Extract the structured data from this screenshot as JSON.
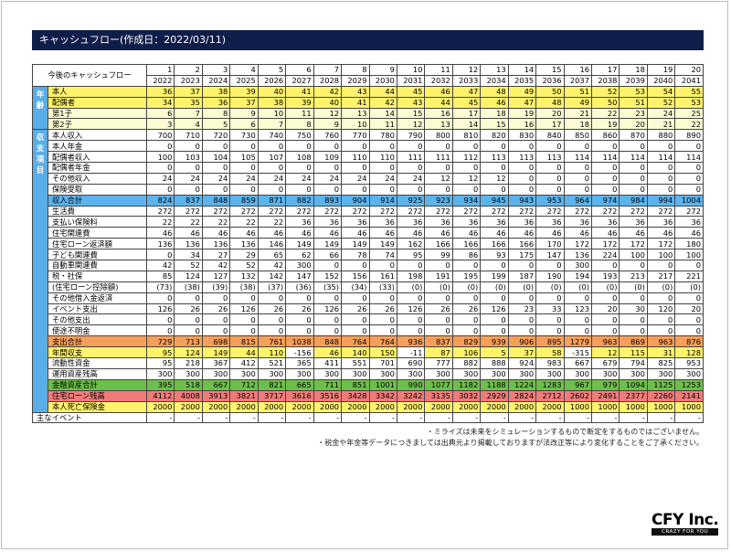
{
  "title": "キャッシュフロー(作成日：2022/03/11)",
  "table": {
    "corner_label": "今後のキャッシュフロー",
    "group_age": "年齢",
    "group_items": "収支項目",
    "periods": [
      "1",
      "2",
      "3",
      "4",
      "5",
      "6",
      "7",
      "8",
      "9",
      "10",
      "11",
      "12",
      "13",
      "14",
      "15",
      "16",
      "17",
      "18",
      "19",
      "20"
    ],
    "years": [
      "2022",
      "2023",
      "2024",
      "2025",
      "2026",
      "2027",
      "2028",
      "2029",
      "2030",
      "2031",
      "2032",
      "2033",
      "2034",
      "2035",
      "2036",
      "2037",
      "2038",
      "2039",
      "2040",
      "2041"
    ],
    "age_rows": [
      {
        "label": "本人",
        "style": "y",
        "values": [
          "36",
          "37",
          "38",
          "39",
          "40",
          "41",
          "42",
          "43",
          "44",
          "45",
          "46",
          "47",
          "48",
          "49",
          "50",
          "51",
          "52",
          "53",
          "54",
          "55"
        ]
      },
      {
        "label": "配偶者",
        "style": "y",
        "values": [
          "34",
          "35",
          "36",
          "37",
          "38",
          "39",
          "40",
          "41",
          "42",
          "43",
          "44",
          "45",
          "46",
          "47",
          "48",
          "49",
          "50",
          "51",
          "52",
          "53"
        ]
      },
      {
        "label": "第1子",
        "style": "ly",
        "values": [
          "6",
          "7",
          "8",
          "9",
          "10",
          "11",
          "12",
          "13",
          "14",
          "15",
          "16",
          "17",
          "18",
          "19",
          "20",
          "21",
          "22",
          "23",
          "24",
          "25"
        ]
      },
      {
        "label": "第2子",
        "style": "ly",
        "values": [
          "3",
          "4",
          "5",
          "6",
          "7",
          "8",
          "9",
          "10",
          "11",
          "12",
          "13",
          "14",
          "15",
          "16",
          "17",
          "18",
          "19",
          "20",
          "21",
          "22"
        ]
      }
    ],
    "item_rows": [
      {
        "label": "本人収入",
        "style": "w",
        "values": [
          "700",
          "710",
          "720",
          "730",
          "740",
          "750",
          "760",
          "770",
          "780",
          "790",
          "800",
          "810",
          "820",
          "830",
          "840",
          "850",
          "860",
          "870",
          "880",
          "890"
        ]
      },
      {
        "label": "本人年金",
        "style": "w",
        "values": [
          "0",
          "0",
          "0",
          "0",
          "0",
          "0",
          "0",
          "0",
          "0",
          "0",
          "0",
          "0",
          "0",
          "0",
          "0",
          "0",
          "0",
          "0",
          "0",
          "0"
        ]
      },
      {
        "label": "配偶者収入",
        "style": "w",
        "values": [
          "100",
          "103",
          "104",
          "105",
          "107",
          "108",
          "109",
          "110",
          "110",
          "111",
          "111",
          "112",
          "113",
          "113",
          "113",
          "114",
          "114",
          "114",
          "114",
          "114"
        ]
      },
      {
        "label": "配偶者年金",
        "style": "w",
        "values": [
          "0",
          "0",
          "0",
          "0",
          "0",
          "0",
          "0",
          "0",
          "0",
          "0",
          "0",
          "0",
          "0",
          "0",
          "0",
          "0",
          "0",
          "0",
          "0",
          "0"
        ]
      },
      {
        "label": "その他収入",
        "style": "w",
        "values": [
          "24",
          "24",
          "24",
          "24",
          "24",
          "24",
          "24",
          "24",
          "24",
          "24",
          "12",
          "12",
          "12",
          "0",
          "0",
          "0",
          "0",
          "0",
          "0",
          "0"
        ]
      },
      {
        "label": "保険受取",
        "style": "w",
        "values": [
          "0",
          "0",
          "0",
          "0",
          "0",
          "0",
          "0",
          "0",
          "0",
          "0",
          "0",
          "0",
          "0",
          "0",
          "0",
          "0",
          "0",
          "0",
          "0",
          "0"
        ]
      },
      {
        "label": "収入合計",
        "style": "b",
        "values": [
          "824",
          "837",
          "848",
          "859",
          "871",
          "882",
          "893",
          "904",
          "914",
          "925",
          "923",
          "934",
          "945",
          "943",
          "953",
          "964",
          "974",
          "984",
          "994",
          "1004"
        ]
      },
      {
        "label": "生活費",
        "style": "w",
        "values": [
          "272",
          "272",
          "272",
          "272",
          "272",
          "272",
          "272",
          "272",
          "272",
          "272",
          "272",
          "272",
          "272",
          "272",
          "272",
          "272",
          "272",
          "272",
          "272",
          "272"
        ]
      },
      {
        "label": "支払い保険料",
        "style": "w",
        "values": [
          "22",
          "22",
          "22",
          "22",
          "22",
          "36",
          "36",
          "36",
          "36",
          "36",
          "36",
          "36",
          "36",
          "36",
          "36",
          "36",
          "36",
          "36",
          "36",
          "36"
        ]
      },
      {
        "label": "住宅関連費",
        "style": "w",
        "values": [
          "46",
          "46",
          "46",
          "46",
          "46",
          "46",
          "46",
          "46",
          "46",
          "46",
          "46",
          "46",
          "46",
          "46",
          "46",
          "46",
          "46",
          "46",
          "46",
          "46"
        ]
      },
      {
        "label": "住宅ローン返済額",
        "style": "w",
        "values": [
          "136",
          "136",
          "136",
          "136",
          "146",
          "149",
          "149",
          "149",
          "149",
          "162",
          "166",
          "166",
          "166",
          "166",
          "170",
          "172",
          "172",
          "172",
          "172",
          "180"
        ]
      },
      {
        "label": "子ども関連費",
        "style": "w",
        "values": [
          "0",
          "34",
          "27",
          "29",
          "65",
          "62",
          "66",
          "78",
          "74",
          "95",
          "99",
          "86",
          "93",
          "175",
          "147",
          "136",
          "224",
          "100",
          "100",
          "100"
        ]
      },
      {
        "label": "自動車関連費",
        "style": "w",
        "values": [
          "42",
          "52",
          "42",
          "52",
          "42",
          "300",
          "0",
          "0",
          "0",
          "0",
          "0",
          "0",
          "0",
          "0",
          "0",
          "300",
          "0",
          "0",
          "0",
          "0"
        ]
      },
      {
        "label": "税・社保",
        "style": "w",
        "values": [
          "85",
          "124",
          "127",
          "132",
          "142",
          "147",
          "152",
          "156",
          "161",
          "198",
          "191",
          "195",
          "199",
          "187",
          "190",
          "194",
          "193",
          "213",
          "217",
          "221"
        ]
      },
      {
        "label": "(住宅ローン控除額)",
        "style": "w",
        "values": [
          "(73)",
          "(38)",
          "(39)",
          "(38)",
          "(37)",
          "(36)",
          "(35)",
          "(34)",
          "(33)",
          "(0)",
          "(0)",
          "(0)",
          "(0)",
          "(0)",
          "(0)",
          "(0)",
          "(0)",
          "(0)",
          "(0)",
          "(0)"
        ]
      },
      {
        "label": "その他借入金返済",
        "style": "w",
        "values": [
          "0",
          "0",
          "0",
          "0",
          "0",
          "0",
          "0",
          "0",
          "0",
          "0",
          "0",
          "0",
          "0",
          "0",
          "0",
          "0",
          "0",
          "0",
          "0",
          "0"
        ]
      },
      {
        "label": "イベント支出",
        "style": "w",
        "values": [
          "126",
          "26",
          "26",
          "126",
          "26",
          "26",
          "126",
          "26",
          "26",
          "126",
          "26",
          "26",
          "126",
          "23",
          "33",
          "123",
          "20",
          "30",
          "120",
          "20"
        ]
      },
      {
        "label": "その他支出",
        "style": "w",
        "values": [
          "0",
          "0",
          "0",
          "0",
          "0",
          "0",
          "0",
          "0",
          "0",
          "0",
          "0",
          "0",
          "0",
          "0",
          "0",
          "0",
          "0",
          "0",
          "0",
          "0"
        ]
      },
      {
        "label": "使途不明金",
        "style": "w",
        "values": [
          "0",
          "0",
          "0",
          "0",
          "0",
          "0",
          "0",
          "0",
          "0",
          "0",
          "0",
          "0",
          "0",
          "0",
          "0",
          "0",
          "0",
          "0",
          "0",
          "0"
        ]
      },
      {
        "label": "支出合計",
        "style": "o",
        "values": [
          "729",
          "713",
          "698",
          "815",
          "761",
          "1038",
          "848",
          "764",
          "764",
          "936",
          "837",
          "829",
          "939",
          "906",
          "895",
          "1279",
          "963",
          "869",
          "963",
          "876"
        ]
      },
      {
        "label": "年間収支",
        "style": "y",
        "negative_white": true,
        "values": [
          "95",
          "124",
          "149",
          "44",
          "110",
          "-156",
          "46",
          "140",
          "150",
          "-11",
          "87",
          "106",
          "5",
          "37",
          "58",
          "-315",
          "12",
          "115",
          "31",
          "128"
        ]
      },
      {
        "label": "流動性資金",
        "style": "w",
        "values": [
          "95",
          "218",
          "367",
          "412",
          "521",
          "365",
          "411",
          "551",
          "701",
          "690",
          "777",
          "882",
          "888",
          "924",
          "983",
          "667",
          "679",
          "794",
          "825",
          "953"
        ]
      },
      {
        "label": "運用資産残高",
        "style": "w",
        "values": [
          "300",
          "300",
          "300",
          "300",
          "300",
          "300",
          "300",
          "300",
          "300",
          "300",
          "300",
          "300",
          "300",
          "300",
          "300",
          "300",
          "300",
          "300",
          "300",
          "300"
        ]
      },
      {
        "label": "金融資産合計",
        "style": "g",
        "values": [
          "395",
          "518",
          "667",
          "712",
          "821",
          "665",
          "711",
          "851",
          "1001",
          "990",
          "1077",
          "1182",
          "1188",
          "1224",
          "1283",
          "967",
          "979",
          "1094",
          "1125",
          "1253"
        ]
      },
      {
        "label": "住宅ローン残高",
        "style": "r",
        "values": [
          "4112",
          "4008",
          "3913",
          "3821",
          "3717",
          "3616",
          "3516",
          "3428",
          "3342",
          "3242",
          "3135",
          "3032",
          "2929",
          "2824",
          "2712",
          "2602",
          "2491",
          "2377",
          "2260",
          "2141"
        ]
      },
      {
        "label": "本人死亡保険金",
        "style": "y",
        "values": [
          "2000",
          "2000",
          "2000",
          "2000",
          "2000",
          "2000",
          "2000",
          "2000",
          "2000",
          "2000",
          "2000",
          "2000",
          "2000",
          "2000",
          "2000",
          "1000",
          "1000",
          "1000",
          "1000",
          "1000"
        ]
      }
    ],
    "event_row": {
      "label": "主なイベント",
      "values": [
        "-",
        "-",
        "-",
        "-",
        "-",
        "-",
        "-",
        "-",
        "-",
        "-",
        "-",
        "-",
        "-",
        "-",
        "-",
        "-",
        "-",
        "-",
        "-",
        "-"
      ]
    }
  },
  "notes": [
    "・ミライズは未来をシミュレーションするもので断定をするものではございません。",
    "・税金や年金等データにつきましては出典元より掲載しておりますが法改正等により変化することをご了承ください。"
  ],
  "logo": {
    "name": "CFY Inc.",
    "tagline": "CRAZY FOR YOU"
  }
}
